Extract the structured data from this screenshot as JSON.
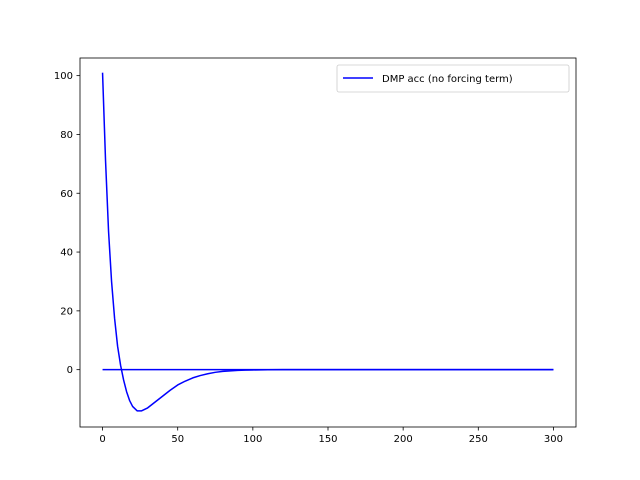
{
  "chart_data": {
    "type": "line",
    "title": "",
    "xlabel": "",
    "ylabel": "",
    "xlim": [
      -15,
      315
    ],
    "ylim": [
      -19.5,
      106
    ],
    "x_ticks": [
      0,
      50,
      100,
      150,
      200,
      250,
      300
    ],
    "x_tick_labels": [
      "0",
      "50",
      "100",
      "150",
      "200",
      "250",
      "300"
    ],
    "y_ticks": [
      0,
      20,
      40,
      60,
      80,
      100
    ],
    "y_tick_labels": [
      "0",
      "20",
      "40",
      "60",
      "80",
      "100"
    ],
    "grid": false,
    "legend_position": "top-right",
    "legend_label": "DMP acc (no forcing term)",
    "color": "#0000ff",
    "series": [
      {
        "name": "DMP acc (no forcing term)",
        "color": "#0000ff",
        "x": [
          0,
          2,
          4,
          6,
          8,
          10,
          12,
          14,
          16,
          18,
          20,
          23,
          26,
          30,
          35,
          40,
          45,
          50,
          55,
          60,
          65,
          70,
          75,
          80,
          85,
          90,
          95,
          100,
          110,
          120,
          150,
          200,
          250,
          300
        ],
        "y": [
          101,
          71,
          47,
          30,
          17.5,
          8,
          1.5,
          -3.5,
          -7.5,
          -10.5,
          -12.5,
          -14,
          -14,
          -13,
          -11,
          -9,
          -7,
          -5.2,
          -3.9,
          -2.8,
          -2.0,
          -1.4,
          -0.9,
          -0.6,
          -0.4,
          -0.25,
          -0.15,
          -0.1,
          -0.04,
          0,
          0,
          0,
          0,
          0
        ]
      },
      {
        "name": "",
        "color": "#0000ff",
        "x": [
          0,
          300
        ],
        "y": [
          0,
          0
        ]
      }
    ]
  }
}
